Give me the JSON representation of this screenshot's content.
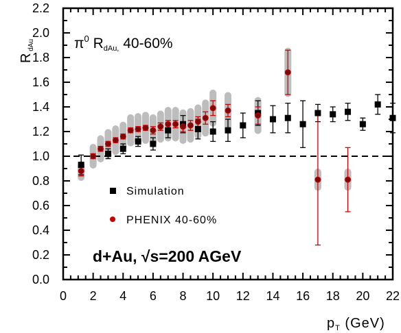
{
  "chart_data": {
    "type": "scatter",
    "annotation_title": "π⁰ R dAu, 40-60%",
    "annotation_system": "d+Au, √s=200 AGeV",
    "xlabel": "p_T (GeV)",
    "ylabel": "R_dAu",
    "xlim": [
      0,
      22
    ],
    "ylim": [
      0,
      2.2
    ],
    "x_ticks": [
      0,
      2,
      4,
      6,
      8,
      10,
      12,
      14,
      16,
      18,
      20,
      22
    ],
    "y_ticks": [
      0.0,
      0.2,
      0.4,
      0.6,
      0.8,
      1.0,
      1.2,
      1.4,
      1.6,
      1.8,
      2.0,
      2.2
    ],
    "reference_line": 1.0,
    "legend_position": "center-left",
    "series": [
      {
        "name": "Simulation",
        "marker": "square",
        "color": "#000000",
        "points": [
          {
            "x": 1.2,
            "y": 0.93,
            "err": 0.08
          },
          {
            "x": 3.0,
            "y": 1.02,
            "err": 0.04
          },
          {
            "x": 4.0,
            "y": 1.06,
            "err": 0.04
          },
          {
            "x": 5.0,
            "y": 1.12,
            "err": 0.04
          },
          {
            "x": 6.0,
            "y": 1.1,
            "err": 0.05
          },
          {
            "x": 7.0,
            "y": 1.21,
            "err": 0.06
          },
          {
            "x": 8.0,
            "y": 1.26,
            "err": 0.07
          },
          {
            "x": 9.0,
            "y": 1.22,
            "err": 0.08
          },
          {
            "x": 10.0,
            "y": 1.2,
            "err": 0.08
          },
          {
            "x": 11.0,
            "y": 1.21,
            "err": 0.09
          },
          {
            "x": 12.0,
            "y": 1.25,
            "err": 0.1
          },
          {
            "x": 13.0,
            "y": 1.35,
            "err": 0.1
          },
          {
            "x": 14.0,
            "y": 1.3,
            "err": 0.11
          },
          {
            "x": 15.0,
            "y": 1.31,
            "err": 0.12
          },
          {
            "x": 16.0,
            "y": 1.26,
            "err": 0.19
          },
          {
            "x": 17.0,
            "y": 1.35,
            "err": 0.07
          },
          {
            "x": 18.0,
            "y": 1.34,
            "err": 0.06
          },
          {
            "x": 19.0,
            "y": 1.36,
            "err": 0.07
          },
          {
            "x": 20.0,
            "y": 1.26,
            "err": 0.05
          },
          {
            "x": 21.0,
            "y": 1.42,
            "err": 0.08
          },
          {
            "x": 22.0,
            "y": 1.31,
            "err": 0.12
          }
        ]
      },
      {
        "name": "PHENIX 40-60%",
        "marker": "circle",
        "color": "#cc0000",
        "fill": "#7a0a0a",
        "syst_color": "#bdbdbd",
        "points": [
          {
            "x": 1.2,
            "y": 0.88,
            "err": 0.04,
            "syst": 0.08
          },
          {
            "x": 2.0,
            "y": 1.0,
            "err": 0.02,
            "syst": 0.1
          },
          {
            "x": 2.5,
            "y": 1.06,
            "err": 0.02,
            "syst": 0.11
          },
          {
            "x": 3.0,
            "y": 1.1,
            "err": 0.02,
            "syst": 0.12
          },
          {
            "x": 3.5,
            "y": 1.13,
            "err": 0.02,
            "syst": 0.12
          },
          {
            "x": 4.0,
            "y": 1.16,
            "err": 0.02,
            "syst": 0.12
          },
          {
            "x": 4.5,
            "y": 1.21,
            "err": 0.02,
            "syst": 0.13
          },
          {
            "x": 5.0,
            "y": 1.22,
            "err": 0.02,
            "syst": 0.13
          },
          {
            "x": 5.5,
            "y": 1.23,
            "err": 0.02,
            "syst": 0.13
          },
          {
            "x": 6.0,
            "y": 1.21,
            "err": 0.03,
            "syst": 0.13
          },
          {
            "x": 6.5,
            "y": 1.24,
            "err": 0.03,
            "syst": 0.13
          },
          {
            "x": 7.0,
            "y": 1.26,
            "err": 0.03,
            "syst": 0.14
          },
          {
            "x": 7.5,
            "y": 1.26,
            "err": 0.03,
            "syst": 0.14
          },
          {
            "x": 8.0,
            "y": 1.24,
            "err": 0.04,
            "syst": 0.14
          },
          {
            "x": 8.5,
            "y": 1.25,
            "err": 0.04,
            "syst": 0.14
          },
          {
            "x": 9.0,
            "y": 1.28,
            "err": 0.04,
            "syst": 0.14
          },
          {
            "x": 9.5,
            "y": 1.31,
            "err": 0.05,
            "syst": 0.15
          },
          {
            "x": 10.0,
            "y": 1.39,
            "err": 0.06,
            "syst": 0.15
          },
          {
            "x": 11.0,
            "y": 1.37,
            "err": 0.05,
            "syst": 0.15
          },
          {
            "x": 13.0,
            "y": 1.33,
            "err": 0.07,
            "syst": 0.15
          },
          {
            "x": 15.0,
            "y": 1.68,
            "err": 0.18,
            "syst": 0.2
          },
          {
            "x": 17.0,
            "y": 0.81,
            "err": 0.53,
            "syst": 0.09
          },
          {
            "x": 19.0,
            "y": 0.81,
            "err": 0.26,
            "syst": 0.09
          }
        ]
      }
    ]
  }
}
